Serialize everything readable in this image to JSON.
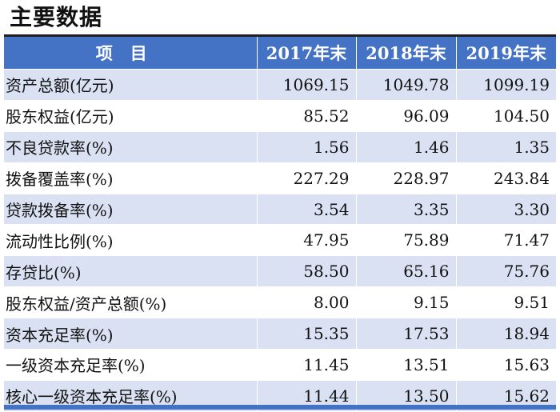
{
  "title": "主要数据",
  "table": {
    "headers": [
      "项目",
      "2017年末",
      "2018年末",
      "2019年末"
    ],
    "rows": [
      {
        "label": "资产总额(亿元)",
        "values": [
          "1069.15",
          "1049.78",
          "1099.19"
        ]
      },
      {
        "label": "股东权益(亿元)",
        "values": [
          "85.52",
          "96.09",
          "104.50"
        ]
      },
      {
        "label": "不良贷款率(%)",
        "values": [
          "1.56",
          "1.46",
          "1.35"
        ]
      },
      {
        "label": "拨备覆盖率(%)",
        "values": [
          "227.29",
          "228.97",
          "243.84"
        ]
      },
      {
        "label": "贷款拨备率(%)",
        "values": [
          "3.54",
          "3.35",
          "3.30"
        ]
      },
      {
        "label": "流动性比例(%)",
        "values": [
          "47.95",
          "75.89",
          "71.47"
        ]
      },
      {
        "label": "存贷比(%)",
        "values": [
          "58.50",
          "65.16",
          "75.76"
        ]
      },
      {
        "label": "股东权益/资产总额(%)",
        "values": [
          "8.00",
          "9.15",
          "9.51"
        ]
      },
      {
        "label": "资本充足率(%)",
        "values": [
          "15.35",
          "17.53",
          "18.94"
        ]
      },
      {
        "label": "一级资本充足率(%)",
        "values": [
          "11.45",
          "13.51",
          "15.63"
        ]
      },
      {
        "label": "核心一级资本充足率(%)",
        "values": [
          "11.44",
          "13.50",
          "15.62"
        ]
      }
    ]
  },
  "colors": {
    "header_bg": "#4472c4",
    "stripe_bg": "#d9e1f2",
    "header_text": "#ffffff"
  }
}
